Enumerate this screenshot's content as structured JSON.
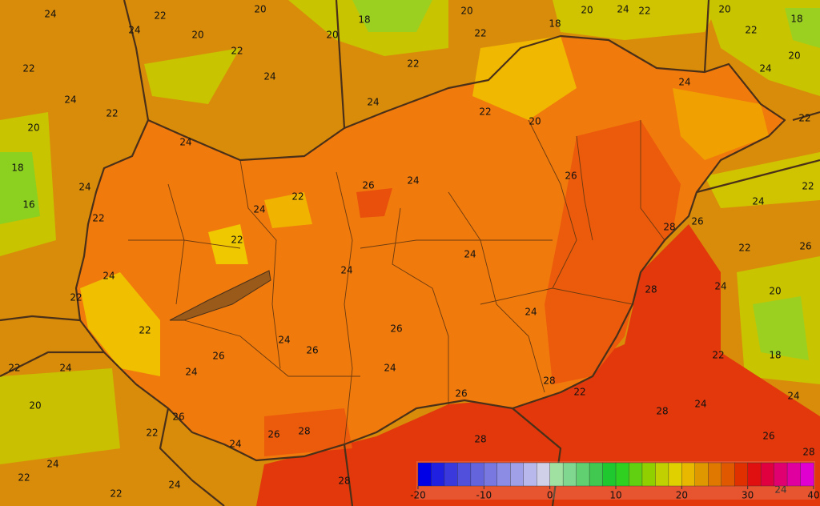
{
  "contour_labels": [
    24,
    22,
    20,
    18,
    20,
    18,
    20,
    24,
    22,
    20,
    18,
    24,
    20,
    22,
    20,
    22,
    22,
    22,
    20,
    22,
    24,
    24,
    22,
    24,
    22,
    20,
    24,
    24,
    22,
    20,
    24,
    18,
    24,
    16,
    26,
    24,
    26,
    22,
    24,
    22,
    22,
    28,
    26,
    24,
    22,
    22,
    26,
    24,
    24,
    24,
    28,
    24,
    20,
    22,
    22,
    24,
    24,
    26,
    26,
    26,
    22,
    18,
    22,
    24,
    24,
    24,
    28,
    20,
    26,
    22,
    28,
    24,
    24,
    26,
    22,
    26,
    28,
    24,
    28,
    26,
    28,
    24,
    22,
    22,
    24,
    28,
    24
  ],
  "colorbar": {
    "range": [
      -20,
      40
    ],
    "ticks": [
      -20,
      -10,
      0,
      10,
      20,
      30,
      40
    ],
    "colors": [
      "#0000e6",
      "#2020e0",
      "#3a3adc",
      "#5050dc",
      "#6464dc",
      "#7878e0",
      "#8c8ce4",
      "#a0a0e8",
      "#b8b8ec",
      "#d0d0e8",
      "#a0e0a0",
      "#80d890",
      "#60d070",
      "#40c850",
      "#20c830",
      "#30d020",
      "#60d010",
      "#90d000",
      "#c0d000",
      "#e0d000",
      "#e8b800",
      "#e09800",
      "#e07800",
      "#e05800",
      "#e03000",
      "#e01010",
      "#e00040",
      "#e00070",
      "#e000a0",
      "#e000d0"
    ]
  }
}
